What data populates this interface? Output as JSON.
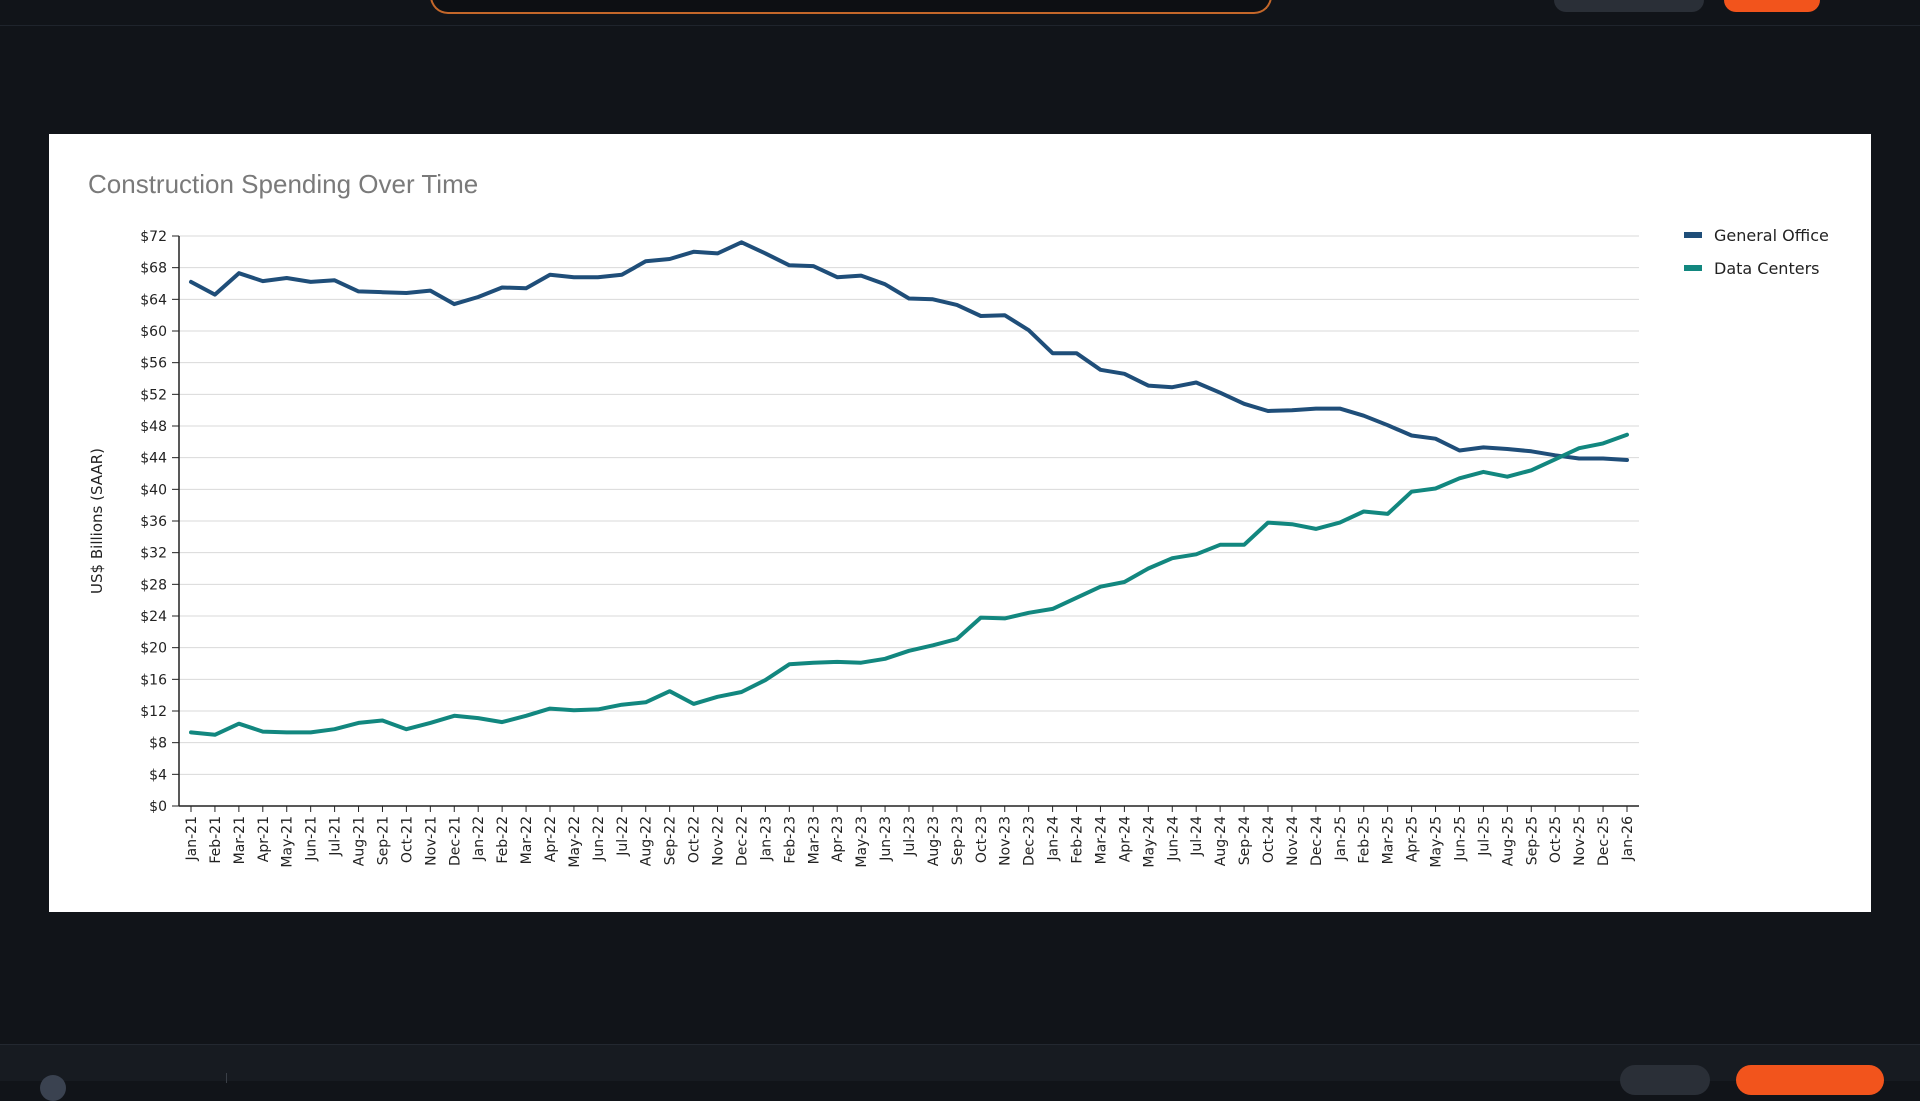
{
  "chart_data": {
    "type": "line",
    "title": "Construction Spending Over Time",
    "xlabel": "",
    "ylabel": "US$ Billions (SAAR)",
    "ylim": [
      0,
      72
    ],
    "y_ticks": [
      "$0",
      "$4",
      "$8",
      "$12",
      "$16",
      "$20",
      "$24",
      "$28",
      "$32",
      "$36",
      "$40",
      "$44",
      "$48",
      "$52",
      "$56",
      "$60",
      "$64",
      "$68",
      "$72"
    ],
    "grid": true,
    "legend_position": "top-right",
    "categories": [
      "Jan-21",
      "Feb-21",
      "Mar-21",
      "Apr-21",
      "May-21",
      "Jun-21",
      "Jul-21",
      "Aug-21",
      "Sep-21",
      "Oct-21",
      "Nov-21",
      "Dec-21",
      "Jan-22",
      "Feb-22",
      "Mar-22",
      "Apr-22",
      "May-22",
      "Jun-22",
      "Jul-22",
      "Aug-22",
      "Sep-22",
      "Oct-22",
      "Nov-22",
      "Dec-22",
      "Jan-23",
      "Feb-23",
      "Mar-23",
      "Apr-23",
      "May-23",
      "Jun-23",
      "Jul-23",
      "Aug-23",
      "Sep-23",
      "Oct-23",
      "Nov-23",
      "Dec-23",
      "Jan-24",
      "Feb-24",
      "Mar-24",
      "Apr-24",
      "May-24",
      "Jun-24",
      "Jul-24",
      "Aug-24",
      "Sep-24",
      "Oct-24",
      "Nov-24",
      "Dec-24",
      "Jan-25",
      "Feb-25",
      "Mar-25",
      "Apr-25",
      "May-25",
      "Jun-25",
      "Jul-25",
      "Aug-25",
      "Sep-25",
      "Oct-25",
      "Nov-25",
      "Dec-25",
      "Jan-26"
    ],
    "series": [
      {
        "name": "General Office",
        "color": "#1f4e79",
        "values": [
          66.2,
          64.6,
          67.3,
          66.3,
          66.7,
          66.2,
          66.4,
          65.0,
          64.9,
          64.8,
          65.1,
          63.4,
          64.3,
          65.5,
          65.4,
          67.1,
          66.8,
          66.8,
          67.1,
          68.8,
          69.1,
          70.0,
          69.8,
          71.2,
          69.8,
          68.3,
          68.2,
          66.8,
          67.0,
          65.9,
          64.1,
          64.0,
          63.3,
          61.9,
          62.0,
          60.1,
          57.2,
          57.2,
          55.1,
          54.6,
          53.1,
          52.9,
          53.5,
          52.2,
          50.8,
          49.9,
          50.0,
          50.2,
          50.2,
          49.3,
          48.1,
          46.8,
          46.4,
          44.9,
          45.3,
          45.1,
          44.8,
          44.3,
          43.9,
          43.9,
          43.7
        ]
      },
      {
        "name": "Data Centers",
        "color": "#12877f",
        "values": [
          9.3,
          9.0,
          10.4,
          9.4,
          9.3,
          9.3,
          9.7,
          10.5,
          10.8,
          9.7,
          10.5,
          11.4,
          11.1,
          10.6,
          11.4,
          12.3,
          12.1,
          12.2,
          12.8,
          13.1,
          14.5,
          12.9,
          13.8,
          14.4,
          15.9,
          17.9,
          18.1,
          18.2,
          18.1,
          18.6,
          19.6,
          20.3,
          21.1,
          23.8,
          23.7,
          24.4,
          24.9,
          26.3,
          27.7,
          28.3,
          30.0,
          31.3,
          31.8,
          33.0,
          33.0,
          35.8,
          35.6,
          35.0,
          35.8,
          37.2,
          36.9,
          39.7,
          40.1,
          41.4,
          42.2,
          41.6,
          42.4,
          43.8,
          45.2,
          45.8,
          46.9
        ]
      }
    ]
  }
}
